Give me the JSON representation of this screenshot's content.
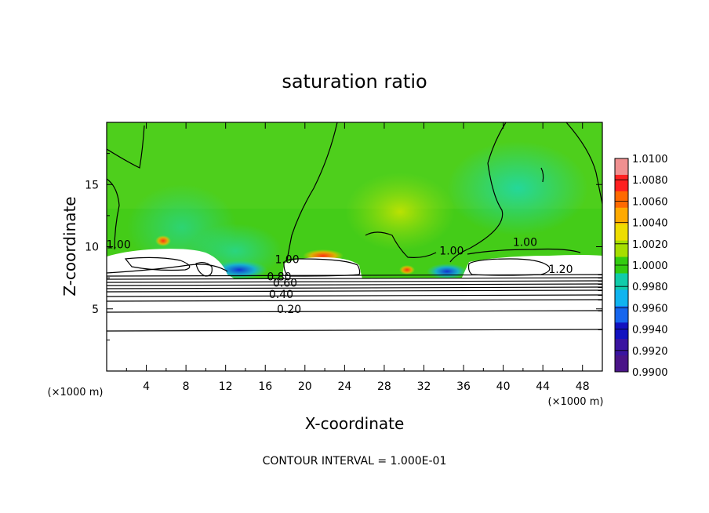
{
  "chart_data": {
    "type": "heatmap",
    "title": "saturation ratio",
    "xlabel": "X-coordinate",
    "ylabel": "Z-coordinate",
    "x_units": "(×1000 m)",
    "z_units": "(×1000 m)",
    "xlim": [
      0,
      50
    ],
    "ylim": [
      0,
      20
    ],
    "x_ticks": [
      4,
      8,
      12,
      16,
      20,
      24,
      28,
      32,
      36,
      40,
      44,
      48
    ],
    "x_tick_labels": [
      "4",
      "8",
      "12",
      "16",
      "20",
      "24",
      "28",
      "32",
      "36",
      "40",
      "44",
      "48"
    ],
    "y_ticks": [
      5,
      10,
      15
    ],
    "y_tick_labels": [
      "5",
      "10",
      "15"
    ],
    "colorbar": {
      "range": [
        0.99,
        1.01
      ],
      "ticks": [
        1.01,
        1.008,
        1.006,
        1.004,
        1.002,
        1.0,
        0.998,
        0.996,
        0.994,
        0.992,
        0.99
      ],
      "tick_labels": [
        "1.0100",
        "1.0080",
        "1.0060",
        "1.0040",
        "1.0020",
        "1.0000",
        "0.9980",
        "0.9960",
        "0.9940",
        "0.9920",
        "0.9900"
      ],
      "colors": [
        "#f09090",
        "#ff2020",
        "#ff6a00",
        "#ffaa00",
        "#eedd00",
        "#a6de00",
        "#33cc11",
        "#11ccaa",
        "#10b4f0",
        "#1666ee",
        "#1212c0",
        "#3a14a0",
        "#4a1488"
      ]
    },
    "contour_labels": [
      {
        "text": "0.20",
        "x": 18.4,
        "z": 4.8
      },
      {
        "text": "0.40",
        "x": 17.6,
        "z": 6.0
      },
      {
        "text": "0.60",
        "x": 18.0,
        "z": 6.9
      },
      {
        "text": "0.80",
        "x": 17.4,
        "z": 7.4
      },
      {
        "text": "1.00",
        "x": 1.2,
        "z": 10.0
      },
      {
        "text": "1.00",
        "x": 18.2,
        "z": 8.8
      },
      {
        "text": "1.00",
        "x": 34.8,
        "z": 9.5
      },
      {
        "text": "1.00",
        "x": 42.2,
        "z": 10.2
      },
      {
        "text": "1.20",
        "x": 45.8,
        "z": 8.0
      }
    ],
    "contour_interval_text": "CONTOUR INTERVAL = 1.000E-01"
  }
}
